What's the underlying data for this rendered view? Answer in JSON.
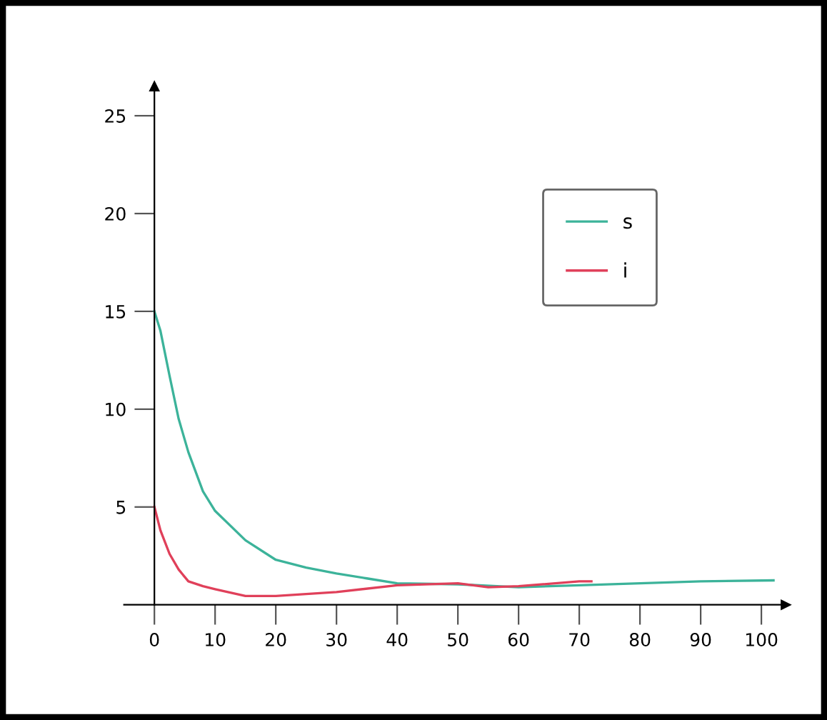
{
  "chart_data": {
    "type": "line",
    "xlim": [
      -5,
      104
    ],
    "ylim": [
      0,
      26.5
    ],
    "xticks": [
      0,
      10,
      20,
      30,
      40,
      50,
      60,
      70,
      80,
      90,
      100
    ],
    "yticks": [
      5,
      10,
      15,
      20,
      25
    ],
    "legend": "top right",
    "grid": false,
    "line_style": "solid",
    "marker": "none",
    "series": [
      {
        "name": "s",
        "color": "#3cb39a",
        "x": [
          0,
          1,
          2.5,
          4,
          5.6,
          8,
          10,
          15,
          20,
          25,
          30,
          35,
          40,
          50,
          60,
          70,
          80,
          90,
          102
        ],
        "values": [
          15,
          14,
          11.7,
          9.5,
          7.8,
          5.8,
          4.8,
          3.3,
          2.3,
          1.9,
          1.6,
          1.35,
          1.1,
          1.05,
          0.9,
          1.0,
          1.1,
          1.2,
          1.25
        ]
      },
      {
        "name": "i",
        "color": "#e0405a",
        "x": [
          0,
          1,
          2.5,
          4,
          5.6,
          8,
          10,
          15,
          20,
          30,
          40,
          50,
          55,
          60,
          70,
          72
        ],
        "values": [
          5,
          3.8,
          2.6,
          1.8,
          1.2,
          0.95,
          0.8,
          0.45,
          0.45,
          0.65,
          1.0,
          1.1,
          0.9,
          0.95,
          1.2,
          1.2
        ]
      }
    ]
  }
}
